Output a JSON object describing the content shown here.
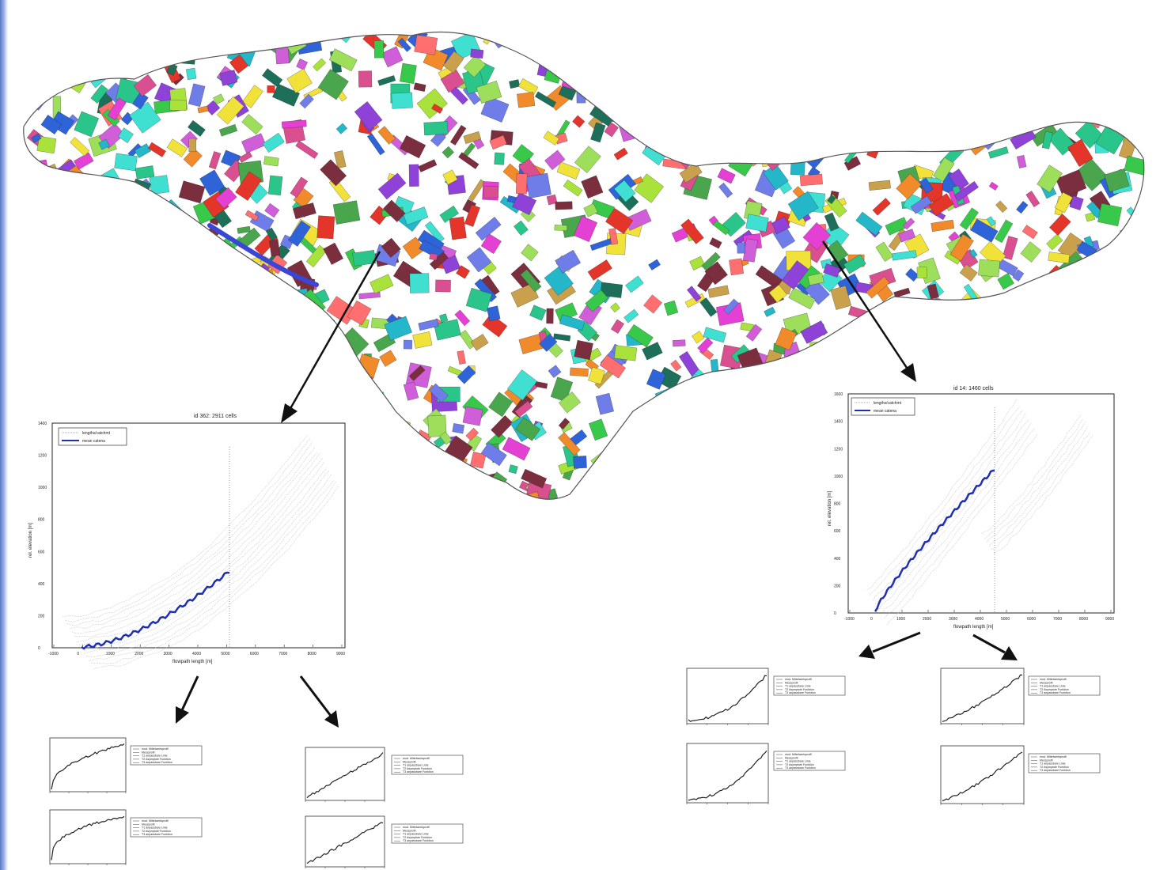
{
  "colors": {
    "accent_blue": "#1f2fb4",
    "frame_blue": "#5a79c6",
    "arrow": "#111111",
    "grey_lines": "#b8b8b8"
  },
  "palette": [
    "#e4352b",
    "#38c94a",
    "#2f63d8",
    "#e540d4",
    "#3fe0d2",
    "#f1e23a",
    "#f08a2a",
    "#8e42d8",
    "#49a64d",
    "#d94f8f",
    "#23b7c9",
    "#a8e23a",
    "#ff6f6f",
    "#6f7de8",
    "#2ac58a",
    "#c9a04b",
    "#7a2e3e",
    "#1d6f5a",
    "#cf5ed8",
    "#9ddf5a"
  ],
  "left_profile": {
    "title": "id 362: 2911 cells",
    "xlabel": "flowpath length [m]",
    "ylabel": "rel. elevation [m]",
    "legend": [
      "lengths/catchmt",
      "mean catena"
    ],
    "x_ticks": [
      "-1000",
      "0",
      "1000",
      "2000",
      "3000",
      "4000",
      "5000",
      "6000",
      "7000",
      "8000",
      "9000"
    ],
    "y_ticks": [
      "0",
      "200",
      "400",
      "600",
      "800",
      "1000",
      "1200",
      "1400"
    ]
  },
  "right_profile": {
    "title": "id 14: 1460 cells",
    "xlabel": "flowpath length [m]",
    "ylabel": "rel. elevation [m]",
    "legend": [
      "lengths/catchmt",
      "mean catena"
    ],
    "x_ticks": [
      "-1000",
      "0",
      "1000",
      "2000",
      "3000",
      "4000",
      "5000",
      "6000",
      "7000",
      "8000",
      "9000"
    ],
    "y_ticks": [
      "0",
      "200",
      "400",
      "600",
      "800",
      "1000",
      "1200",
      "1400",
      "1600"
    ]
  },
  "small_legend": [
    "mod. Mittelwertsprofil",
    "Messprofil",
    "T1 anpassbare Linie",
    "T2 Asymptote Funktion",
    "T3 anpassbare Funktion"
  ]
}
